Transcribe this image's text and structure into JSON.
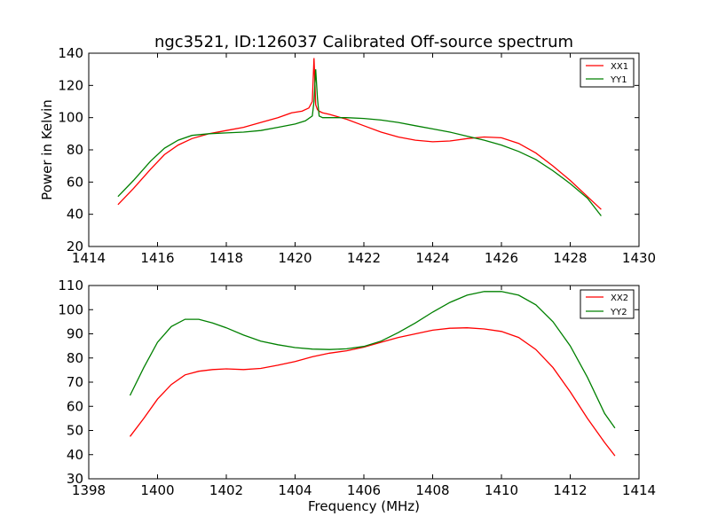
{
  "figure": {
    "title": "ngc3521, ID:126037 Calibrated Off-source spectrum",
    "xlabel": "Frequency (MHz)",
    "ylabel": "Power in Kelvin"
  },
  "chart_data": [
    {
      "type": "line",
      "title": "ngc3521, ID:126037 Calibrated Off-source spectrum",
      "xlabel": "",
      "ylabel": "Power in Kelvin",
      "xlim": [
        1414,
        1430
      ],
      "ylim": [
        20,
        140
      ],
      "xticks": [
        1414,
        1416,
        1418,
        1420,
        1422,
        1424,
        1426,
        1428,
        1430
      ],
      "yticks": [
        20,
        40,
        60,
        80,
        100,
        120,
        140
      ],
      "legend": "top-right",
      "grid": false,
      "series": [
        {
          "name": "XX1",
          "color": "#ff0000",
          "x": [
            1414.85,
            1415.3,
            1415.8,
            1416.2,
            1416.6,
            1417.0,
            1417.5,
            1418.0,
            1418.5,
            1419.0,
            1419.5,
            1419.9,
            1420.2,
            1420.4,
            1420.5,
            1420.55,
            1420.6,
            1420.65,
            1420.7,
            1420.8,
            1421.0,
            1421.5,
            1422.0,
            1422.5,
            1423.0,
            1423.5,
            1424.0,
            1424.5,
            1425.0,
            1425.5,
            1426.0,
            1426.5,
            1427.0,
            1427.5,
            1428.0,
            1428.5,
            1428.9
          ],
          "y": [
            46,
            56,
            68,
            77,
            83,
            87,
            90,
            92,
            94,
            97,
            100,
            103,
            104,
            106,
            110,
            137,
            108,
            105,
            104,
            103,
            102,
            99,
            95,
            91,
            88,
            86,
            85,
            85.5,
            87,
            88,
            87.5,
            84,
            78,
            70,
            61,
            51,
            43
          ]
        },
        {
          "name": "YY1",
          "color": "#008000",
          "x": [
            1414.85,
            1415.3,
            1415.8,
            1416.2,
            1416.6,
            1417.0,
            1417.5,
            1418.0,
            1418.5,
            1419.0,
            1419.5,
            1420.0,
            1420.3,
            1420.5,
            1420.55,
            1420.6,
            1420.65,
            1420.7,
            1420.8,
            1421.0,
            1421.5,
            1422.0,
            1422.5,
            1423.0,
            1423.5,
            1424.0,
            1424.5,
            1425.0,
            1425.5,
            1426.0,
            1426.5,
            1427.0,
            1427.5,
            1428.0,
            1428.5,
            1428.9
          ],
          "y": [
            51,
            61,
            73,
            81,
            86,
            89,
            90,
            90.5,
            91,
            92,
            94,
            96,
            98,
            101,
            110,
            130,
            112,
            101,
            100,
            100,
            100,
            99.5,
            98.5,
            97,
            95,
            93,
            91,
            88.5,
            86,
            83,
            79,
            74,
            67,
            59,
            50,
            39
          ]
        }
      ]
    },
    {
      "type": "line",
      "title": "",
      "xlabel": "Frequency (MHz)",
      "ylabel": "",
      "xlim": [
        1398,
        1414
      ],
      "ylim": [
        30,
        110
      ],
      "xticks": [
        1398,
        1400,
        1402,
        1404,
        1406,
        1408,
        1410,
        1412,
        1414
      ],
      "yticks": [
        30,
        40,
        50,
        60,
        70,
        80,
        90,
        100,
        110
      ],
      "legend": "top-right",
      "grid": false,
      "series": [
        {
          "name": "XX2",
          "color": "#ff0000",
          "x": [
            1399.2,
            1399.6,
            1400.0,
            1400.4,
            1400.8,
            1401.2,
            1401.6,
            1402.0,
            1402.5,
            1403.0,
            1403.5,
            1404.0,
            1404.5,
            1405.0,
            1405.5,
            1406.0,
            1406.5,
            1407.0,
            1407.5,
            1408.0,
            1408.5,
            1409.0,
            1409.5,
            1410.0,
            1410.5,
            1411.0,
            1411.5,
            1412.0,
            1412.5,
            1413.0,
            1413.3
          ],
          "y": [
            47.5,
            55,
            63,
            69,
            73,
            74.5,
            75.2,
            75.5,
            75.2,
            75.7,
            77,
            78.5,
            80.5,
            82,
            83,
            84.5,
            86.5,
            88.5,
            90,
            91.5,
            92.3,
            92.5,
            92,
            91,
            88.5,
            83.5,
            76,
            66,
            55,
            45,
            39.5
          ]
        },
        {
          "name": "YY2",
          "color": "#008000",
          "x": [
            1399.2,
            1399.6,
            1400.0,
            1400.4,
            1400.8,
            1401.2,
            1401.6,
            1402.0,
            1402.5,
            1403.0,
            1403.5,
            1404.0,
            1404.5,
            1405.0,
            1405.5,
            1406.0,
            1406.5,
            1407.0,
            1407.5,
            1408.0,
            1408.5,
            1409.0,
            1409.5,
            1410.0,
            1410.5,
            1411.0,
            1411.5,
            1412.0,
            1412.5,
            1413.0,
            1413.3
          ],
          "y": [
            64.5,
            76,
            86.5,
            93,
            96,
            96,
            94.5,
            92.5,
            89.5,
            87,
            85.5,
            84.3,
            83.7,
            83.5,
            83.8,
            84.8,
            87,
            90.5,
            94.5,
            99,
            103,
            106,
            107.5,
            107.5,
            106,
            102,
            95,
            85,
            72,
            57,
            51
          ]
        }
      ]
    }
  ]
}
